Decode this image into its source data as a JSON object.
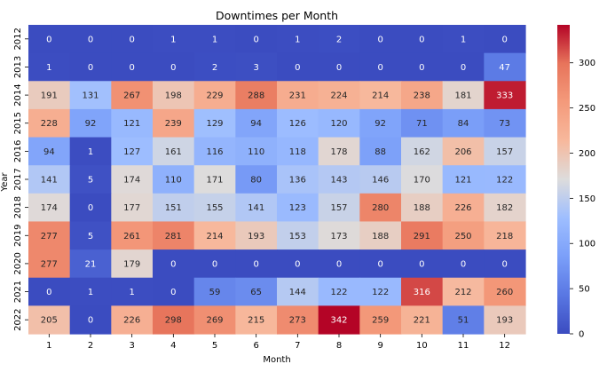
{
  "chart_data": {
    "type": "heatmap",
    "title": "Downtimes per Month",
    "xlabel": "Month",
    "ylabel": "Year",
    "x_categories": [
      "1",
      "2",
      "3",
      "4",
      "5",
      "6",
      "7",
      "8",
      "9",
      "10",
      "11",
      "12"
    ],
    "y_categories": [
      "2012",
      "2013",
      "2014",
      "2015",
      "2016",
      "2017",
      "2018",
      "2019",
      "2020",
      "2021",
      "2022"
    ],
    "values": [
      [
        0,
        0,
        0,
        1,
        1,
        0,
        1,
        2,
        0,
        0,
        1,
        0
      ],
      [
        1,
        0,
        0,
        0,
        2,
        3,
        0,
        0,
        0,
        0,
        0,
        47
      ],
      [
        191,
        131,
        267,
        198,
        229,
        288,
        231,
        224,
        214,
        238,
        181,
        333
      ],
      [
        228,
        92,
        121,
        239,
        129,
        94,
        126,
        120,
        92,
        71,
        84,
        73
      ],
      [
        94,
        1,
        127,
        161,
        116,
        110,
        118,
        178,
        88,
        162,
        206,
        157
      ],
      [
        141,
        5,
        174,
        110,
        171,
        80,
        136,
        143,
        146,
        170,
        121,
        122
      ],
      [
        174,
        0,
        177,
        151,
        155,
        141,
        123,
        157,
        280,
        188,
        226,
        182
      ],
      [
        277,
        5,
        261,
        281,
        214,
        193,
        153,
        173,
        188,
        291,
        250,
        218
      ],
      [
        277,
        21,
        179,
        0,
        0,
        0,
        0,
        0,
        0,
        0,
        0,
        0
      ],
      [
        0,
        1,
        1,
        0,
        59,
        65,
        144,
        122,
        122,
        316,
        212,
        260
      ],
      [
        205,
        0,
        226,
        298,
        269,
        215,
        273,
        342,
        259,
        221,
        51,
        193
      ]
    ],
    "colormap": "coolwarm",
    "vmin": 0,
    "vmax": 342,
    "colorbar_ticks": [
      "0",
      "50",
      "100",
      "150",
      "200",
      "250",
      "300"
    ],
    "grid": false,
    "annotations": true
  }
}
